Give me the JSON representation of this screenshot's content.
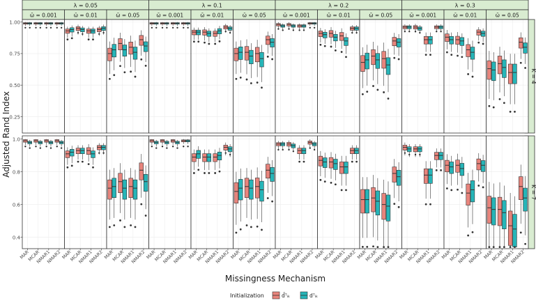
{
  "chart_data": {
    "type": "boxplot",
    "title": "",
    "xlabel": "Missingness Mechanism",
    "ylabel": "Adjusted Rand Index",
    "categories": [
      "MAR",
      "MCAR",
      "NMAR1",
      "NMAR2"
    ],
    "lambda_labels": [
      "λ = 0.05",
      "λ = 0.1",
      "λ = 0.2",
      "λ = 0.3"
    ],
    "omega_labels": [
      "ω̄ = 0.001",
      "ω̄ = 0.01",
      "ω̄ = 0.05"
    ],
    "K_labels": [
      "K = 4",
      "K = 7"
    ],
    "legend": {
      "title": "Initialization",
      "placement": "bottom",
      "entries": [
        {
          "label": "d̃ᵀᵢₖ",
          "color": "#E8847C"
        },
        {
          "label": "dᵀᵢₖ",
          "color": "#26B5B8"
        }
      ]
    },
    "y_axes": [
      {
        "ylim": [
          0.12,
          1.02
        ],
        "ticks": [
          0.25,
          0.5,
          0.75,
          1.0
        ],
        "tick_labels": [
          "0.25",
          "0.50",
          "0.75",
          "1.00"
        ]
      },
      {
        "ylim": [
          0.33,
          1.02
        ],
        "ticks": [
          0.4,
          0.6,
          0.8,
          1.0
        ],
        "tick_labels": [
          "0.4",
          "0.6",
          "0.8",
          "1.0"
        ]
      }
    ],
    "series_colors": [
      "#E8847C",
      "#26B5B8"
    ],
    "medians": [
      [
        [
          [
            0.99,
            0.99
          ],
          [
            0.99,
            0.99
          ],
          [
            0.99,
            0.99
          ],
          [
            0.99,
            0.99
          ]
        ],
        [
          [
            0.93,
            0.94
          ],
          [
            0.95,
            0.94
          ],
          [
            0.93,
            0.93
          ],
          [
            0.94,
            0.95
          ]
        ],
        [
          [
            0.75,
            0.78
          ],
          [
            0.83,
            0.78
          ],
          [
            0.8,
            0.76
          ],
          [
            0.86,
            0.81
          ]
        ],
        [
          [
            0.99,
            0.99
          ],
          [
            0.99,
            0.99
          ],
          [
            0.99,
            0.99
          ],
          [
            0.99,
            0.99
          ]
        ],
        [
          [
            0.92,
            0.92
          ],
          [
            0.92,
            0.91
          ],
          [
            0.91,
            0.93
          ],
          [
            0.96,
            0.95
          ]
        ],
        [
          [
            0.75,
            0.76
          ],
          [
            0.76,
            0.73
          ],
          [
            0.75,
            0.71
          ],
          [
            0.86,
            0.84
          ]
        ],
        [
          [
            0.98,
            0.97
          ],
          [
            0.98,
            0.97
          ],
          [
            0.97,
            0.97
          ],
          [
            0.99,
            0.99
          ]
        ],
        [
          [
            0.91,
            0.9
          ],
          [
            0.91,
            0.88
          ],
          [
            0.89,
            0.85
          ],
          [
            0.95,
            0.95
          ]
        ],
        [
          [
            0.68,
            0.7
          ],
          [
            0.73,
            0.7
          ],
          [
            0.71,
            0.66
          ],
          [
            0.85,
            0.84
          ]
        ],
        [
          [
            0.96,
            0.96
          ],
          [
            0.96,
            0.95
          ],
          [
            0.86,
            0.86
          ],
          [
            0.96,
            0.96
          ]
        ],
        [
          [
            0.88,
            0.86
          ],
          [
            0.86,
            0.85
          ],
          [
            0.78,
            0.76
          ],
          [
            0.92,
            0.91
          ]
        ],
        [
          [
            0.63,
            0.62
          ],
          [
            0.67,
            0.64
          ],
          [
            0.6,
            0.6
          ],
          [
            0.84,
            0.8
          ]
        ]
      ],
      [
        [
          [
            0.99,
            0.98
          ],
          [
            0.99,
            0.98
          ],
          [
            0.99,
            0.98
          ],
          [
            0.99,
            0.98
          ]
        ],
        [
          [
            0.91,
            0.92
          ],
          [
            0.93,
            0.93
          ],
          [
            0.93,
            0.91
          ],
          [
            0.95,
            0.95
          ]
        ],
        [
          [
            0.7,
            0.71
          ],
          [
            0.74,
            0.7
          ],
          [
            0.71,
            0.7
          ],
          [
            0.81,
            0.74
          ]
        ],
        [
          [
            0.99,
            0.98
          ],
          [
            0.99,
            0.98
          ],
          [
            0.99,
            0.98
          ],
          [
            0.99,
            0.99
          ]
        ],
        [
          [
            0.89,
            0.91
          ],
          [
            0.89,
            0.89
          ],
          [
            0.89,
            0.9
          ],
          [
            0.95,
            0.94
          ]
        ],
        [
          [
            0.68,
            0.7
          ],
          [
            0.71,
            0.7
          ],
          [
            0.71,
            0.69
          ],
          [
            0.81,
            0.79
          ]
        ],
        [
          [
            0.97,
            0.97
          ],
          [
            0.97,
            0.96
          ],
          [
            0.93,
            0.93
          ],
          [
            0.98,
            0.97
          ]
        ],
        [
          [
            0.87,
            0.86
          ],
          [
            0.86,
            0.85
          ],
          [
            0.83,
            0.83
          ],
          [
            0.93,
            0.93
          ]
        ],
        [
          [
            0.63,
            0.63
          ],
          [
            0.64,
            0.62
          ],
          [
            0.6,
            0.59
          ],
          [
            0.79,
            0.77
          ]
        ],
        [
          [
            0.95,
            0.94
          ],
          [
            0.94,
            0.94
          ],
          [
            0.78,
            0.78
          ],
          [
            0.9,
            0.9
          ]
        ],
        [
          [
            0.84,
            0.83
          ],
          [
            0.84,
            0.82
          ],
          [
            0.67,
            0.69
          ],
          [
            0.85,
            0.84
          ]
        ],
        [
          [
            0.58,
            0.57
          ],
          [
            0.57,
            0.55
          ],
          [
            0.47,
            0.45
          ],
          [
            0.71,
            0.64
          ]
        ]
      ]
    ]
  }
}
